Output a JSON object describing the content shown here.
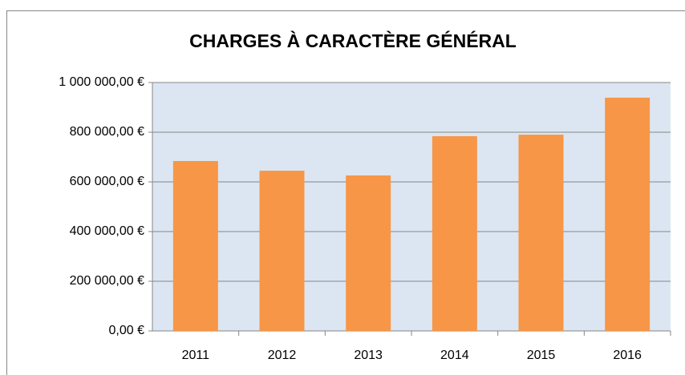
{
  "chart_data": {
    "type": "bar",
    "title": "CHARGES À CARACTÈRE GÉNÉRAL",
    "categories": [
      "2011",
      "2012",
      "2013",
      "2014",
      "2015",
      "2016"
    ],
    "values": [
      684000,
      645000,
      626000,
      784000,
      790000,
      939000
    ],
    "color": "#f79646",
    "ylim": [
      0,
      1000000
    ],
    "yticks": [
      {
        "value": 0,
        "label": "0,00 €"
      },
      {
        "value": 200000,
        "label": "200 000,00 €"
      },
      {
        "value": 400000,
        "label": "400 000,00 €"
      },
      {
        "value": 600000,
        "label": "600 000,00 €"
      },
      {
        "value": 800000,
        "label": "800 000,00 €"
      },
      {
        "value": 1000000,
        "label": "1 000 000,00 €"
      }
    ],
    "grid": true
  }
}
